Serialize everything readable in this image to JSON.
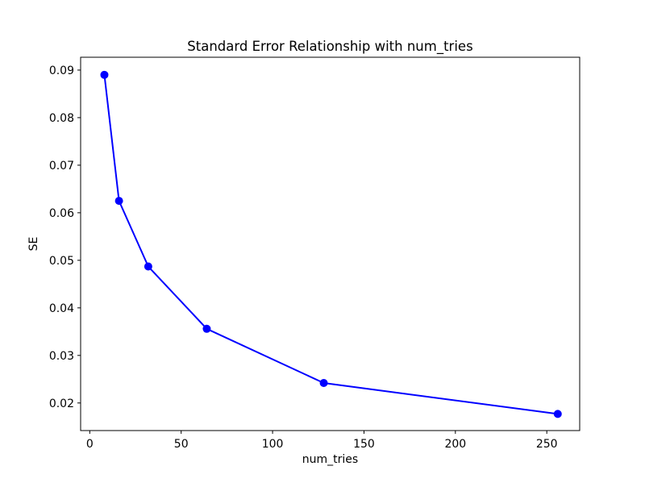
{
  "title": "Standard Error Relationship with num_tries",
  "chart_data": {
    "type": "line",
    "title": "Standard Error Relationship with num_tries",
    "xlabel": "num_tries",
    "ylabel": "SE",
    "x": [
      8,
      16,
      32,
      64,
      128,
      256
    ],
    "y": [
      0.089,
      0.0625,
      0.0487,
      0.0356,
      0.0242,
      0.0177
    ],
    "x_ticks": [
      0,
      50,
      100,
      150,
      200,
      250
    ],
    "y_ticks": [
      0.02,
      0.03,
      0.04,
      0.05,
      0.06,
      0.07,
      0.08,
      0.09
    ],
    "xlim": [
      -5,
      268
    ],
    "ylim": [
      0.0142,
      0.0927
    ],
    "line_color": "#0000ff",
    "marker": "o",
    "grid": false,
    "legend": null,
    "background_color": "#ffffff",
    "frame_color": "#000000"
  }
}
